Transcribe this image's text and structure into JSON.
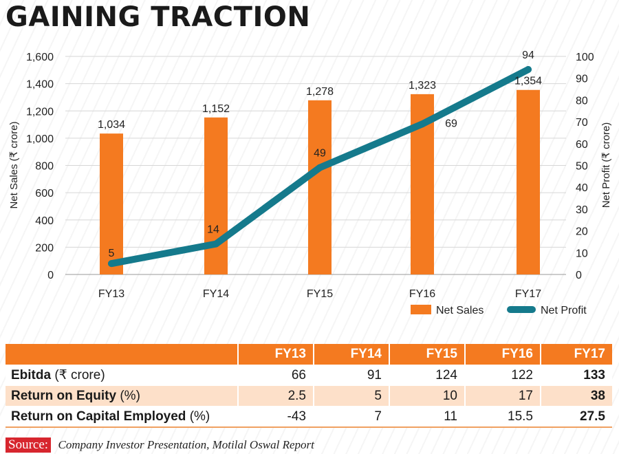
{
  "title": "GAINING TRACTION",
  "chart_data": {
    "type": "bar+line",
    "categories": [
      "FY13",
      "FY14",
      "FY15",
      "FY16",
      "FY17"
    ],
    "series": [
      {
        "name": "Net Sales",
        "type": "bar",
        "axis": "left",
        "color": "#f47a20",
        "values": [
          1034,
          1152,
          1278,
          1323,
          1354
        ],
        "labels": [
          "1,034",
          "1,152",
          "1,278",
          "1,323",
          "1,354"
        ]
      },
      {
        "name": "Net Profit",
        "type": "line",
        "axis": "right",
        "color": "#157a8c",
        "values": [
          5,
          14,
          49,
          69,
          94
        ],
        "labels": [
          "5",
          "14",
          "49",
          "69",
          "94"
        ]
      }
    ],
    "ylabel": "Net Sales (₹ crore)",
    "y2label": "Net Profit (₹ crore)",
    "ylim": [
      0,
      1600
    ],
    "y2lim": [
      0,
      100
    ],
    "yticks": [
      0,
      200,
      400,
      600,
      800,
      1000,
      1200,
      1400,
      1600
    ],
    "ytick_labels": [
      "0",
      "200",
      "400",
      "600",
      "800",
      "1,000",
      "1,200",
      "1,400",
      "1,600"
    ],
    "y2ticks": [
      0,
      10,
      20,
      30,
      40,
      50,
      60,
      70,
      80,
      90,
      100
    ],
    "y2tick_labels": [
      "0",
      "10",
      "20",
      "30",
      "40",
      "50",
      "60",
      "70",
      "80",
      "90",
      "100"
    ],
    "grid": true,
    "legend": "bottom-right"
  },
  "table": {
    "headers": [
      "",
      "FY13",
      "FY14",
      "FY15",
      "FY16",
      "FY17"
    ],
    "rows": [
      {
        "label_bold": "Ebitda",
        "label_rest": " (₹ crore)",
        "values": [
          "66",
          "91",
          "124",
          "122",
          "133"
        ]
      },
      {
        "label_bold": "Return on Equity",
        "label_rest": " (%)",
        "values": [
          "2.5",
          "5",
          "10",
          "17",
          "38"
        ]
      },
      {
        "label_bold": "Return on Capital Employed",
        "label_rest": " (%)",
        "values": [
          "-43",
          "7",
          "11",
          "15.5",
          "27.5"
        ]
      }
    ]
  },
  "source": {
    "label": "Source:",
    "text": "Company Investor Presentation, Motilal Oswal Report"
  },
  "colors": {
    "accent": "#f47a20",
    "line": "#157a8c",
    "source_badge": "#d7262e",
    "row_shade": "#fde0c9"
  }
}
